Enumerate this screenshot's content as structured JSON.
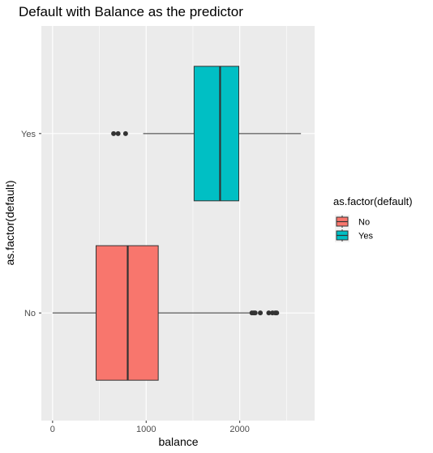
{
  "chart_data": {
    "type": "boxplot",
    "orientation": "horizontal",
    "title": "Default with Balance as the predictor",
    "xlabel": "balance",
    "ylabel": "as.factor(default)",
    "xlim": [
      -120,
      2800
    ],
    "x_ticks": [
      0,
      1000,
      2000
    ],
    "x_tick_labels": [
      "0",
      "1000",
      "2000"
    ],
    "categories": [
      "No",
      "Yes"
    ],
    "series": [
      {
        "name": "No",
        "color": "#F8766D",
        "whisker_low": 0,
        "q1": 465,
        "median": 803,
        "q3": 1129,
        "whisker_high": 2110,
        "outliers": [
          2130,
          2150,
          2165,
          2220,
          2310,
          2350,
          2380,
          2395
        ]
      },
      {
        "name": "Yes",
        "color": "#00BFC4",
        "whisker_low": 968,
        "q1": 1512,
        "median": 1790,
        "q3": 1990,
        "whisker_high": 2654,
        "outliers": [
          652,
          700,
          780
        ]
      }
    ],
    "grid": true,
    "panel_background": "#EBEBEB",
    "legend": {
      "title": "as.factor(default)",
      "position": "right",
      "entries": [
        "No",
        "Yes"
      ]
    }
  }
}
